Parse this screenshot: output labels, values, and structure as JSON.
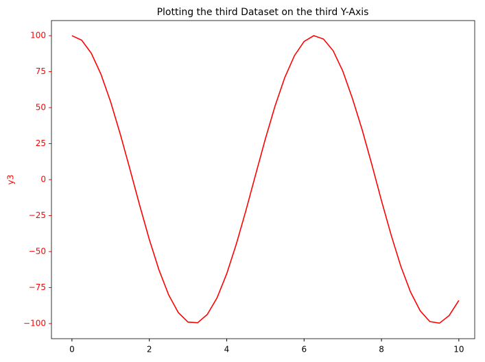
{
  "chart_data": {
    "type": "line",
    "title": "Plotting the third Dataset on the third Y-Axis",
    "y_label": "y3",
    "axis_color": "#ff0000",
    "x": [
      0,
      0.25,
      0.5,
      0.75,
      1,
      1.25,
      1.5,
      1.75,
      2,
      2.25,
      2.5,
      2.75,
      3,
      3.25,
      3.5,
      3.75,
      4,
      4.25,
      4.5,
      4.75,
      5,
      5.25,
      5.5,
      5.75,
      6,
      6.25,
      6.5,
      6.75,
      7,
      7.25,
      7.5,
      7.75,
      8,
      8.25,
      8.5,
      8.75,
      9,
      9.25,
      9.5,
      9.75,
      10
    ],
    "series": [
      {
        "color": "#ff0000",
        "values": [
          100,
          96.9,
          87.8,
          73.2,
          54.0,
          31.5,
          7.1,
          -17.8,
          -41.6,
          -62.8,
          -80.1,
          -92.4,
          -99.0,
          -99.4,
          -93.6,
          -82.1,
          -65.4,
          -44.6,
          -21.1,
          3.8,
          28.4,
          51.2,
          70.9,
          86.1,
          96.0,
          100.0,
          97.7,
          89.6,
          75.4,
          56.3,
          34.7,
          10.6,
          -14.6,
          -38.5,
          -60.2,
          -78.0,
          -91.1,
          -98.6,
          -99.7,
          -94.4,
          -83.9
        ]
      }
    ],
    "xlim": [
      -0.53,
      10.41
    ],
    "xticks": [
      0,
      2,
      4,
      6,
      8,
      10
    ],
    "ylim": [
      -110.5,
      110.5
    ],
    "yticks": [
      {
        "value": -100,
        "label": "−100"
      },
      {
        "value": -75,
        "label": "−75"
      },
      {
        "value": -50,
        "label": "−50"
      },
      {
        "value": -25,
        "label": "−25"
      },
      0,
      25,
      50,
      75,
      100
    ],
    "grid": false
  }
}
